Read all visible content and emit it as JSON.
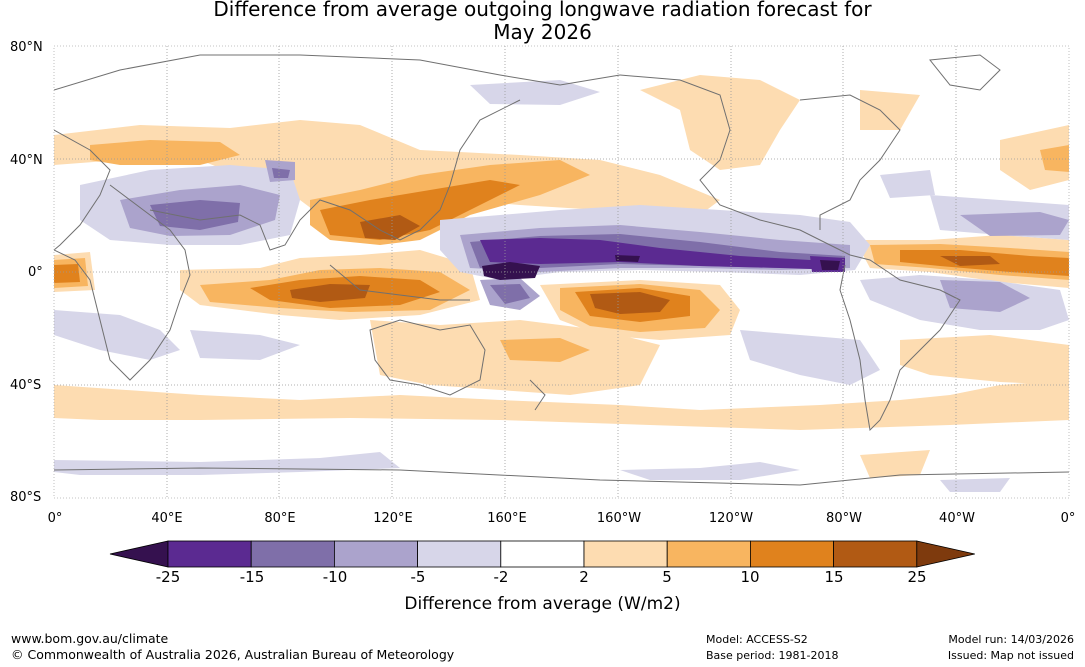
{
  "title": {
    "line1": "Difference from average outgoing longwave radiation forecast for",
    "line2": "May 2026"
  },
  "map": {
    "lat_labels": [
      "80°N",
      "40°N",
      "0°",
      "40°S",
      "80°S"
    ],
    "lon_labels": [
      "0°",
      "40°E",
      "80°E",
      "120°E",
      "160°E",
      "160°W",
      "120°W",
      "80°W",
      "40°W",
      "0°"
    ]
  },
  "colorbar": {
    "title": "Difference from average (W/m2)",
    "ticks": [
      "-25",
      "-15",
      "-10",
      "-5",
      "-2",
      "2",
      "5",
      "10",
      "15",
      "25"
    ],
    "colors": [
      "#35114f",
      "#5b2a91",
      "#7f6fa9",
      "#aba3cc",
      "#d7d6e9",
      "#ffffff",
      "#fddcb1",
      "#f8b560",
      "#e0821d",
      "#b15a14",
      "#7e3a0d"
    ]
  },
  "footer": {
    "url": "www.bom.gov.au/climate",
    "copyright": "© Commonwealth of Australia 2026, Australian Bureau of Meteorology",
    "model": "Model: ACCESS-S2",
    "base_period": "Base period: 1981-2018",
    "model_run": "Model run: 14/03/2026",
    "issued": "Issued: Map not issued"
  }
}
